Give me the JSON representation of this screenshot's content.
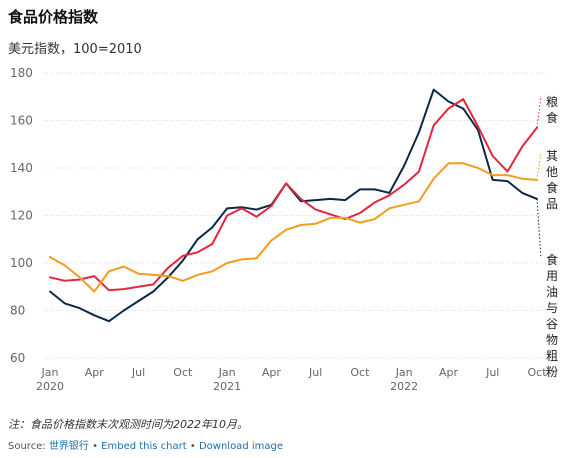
{
  "title": "食品价格指数",
  "subtitle": "美元指数，100=2010",
  "note": "注：食品价格指数末次观测时间为2022年10月。",
  "source": {
    "prefix": "Source: ",
    "link_source": "世界银行",
    "separator": " • ",
    "link_embed": "Embed this chart",
    "link_download": "Download image"
  },
  "colors": {
    "grains": "#e0283e",
    "other_food": "#f39c1f",
    "oils": "#0c2749",
    "grid": "#d9d9d9",
    "axis_text": "#666666"
  },
  "chart_data": {
    "type": "line",
    "x": [
      "2020-01",
      "2020-02",
      "2020-03",
      "2020-04",
      "2020-05",
      "2020-06",
      "2020-07",
      "2020-08",
      "2020-09",
      "2020-10",
      "2020-11",
      "2020-12",
      "2021-01",
      "2021-02",
      "2021-03",
      "2021-04",
      "2021-05",
      "2021-06",
      "2021-07",
      "2021-08",
      "2021-09",
      "2021-10",
      "2021-11",
      "2021-12",
      "2022-01",
      "2022-02",
      "2022-03",
      "2022-04",
      "2022-05",
      "2022-06",
      "2022-07",
      "2022-08",
      "2022-09",
      "2022-10"
    ],
    "ylim": [
      60,
      180
    ],
    "yticks": [
      60,
      80,
      100,
      120,
      140,
      160,
      180
    ],
    "xticks": [
      {
        "index": 0,
        "label": "Jan",
        "year": "2020"
      },
      {
        "index": 3,
        "label": "Apr",
        "year": ""
      },
      {
        "index": 6,
        "label": "Jul",
        "year": ""
      },
      {
        "index": 9,
        "label": "Oct",
        "year": ""
      },
      {
        "index": 12,
        "label": "Jan",
        "year": "2021"
      },
      {
        "index": 15,
        "label": "Apr",
        "year": ""
      },
      {
        "index": 18,
        "label": "Jul",
        "year": ""
      },
      {
        "index": 21,
        "label": "Oct",
        "year": ""
      },
      {
        "index": 24,
        "label": "Jan",
        "year": "2022"
      },
      {
        "index": 27,
        "label": "Apr",
        "year": ""
      },
      {
        "index": 30,
        "label": "Jul",
        "year": ""
      },
      {
        "index": 33,
        "label": "Oct",
        "year": ""
      }
    ],
    "grid": "horizontal",
    "series": [
      {
        "key": "oils",
        "name": "食用油与谷物粗粉",
        "values": [
          88,
          83,
          81,
          78,
          75.5,
          80,
          84,
          88,
          94,
          101,
          110,
          115,
          123,
          123.5,
          122.5,
          124.5,
          133.5,
          126,
          126.5,
          127,
          126.5,
          131,
          131,
          129.5,
          141,
          155,
          173,
          168,
          165,
          156,
          135,
          134.5,
          129.5,
          127
        ]
      },
      {
        "key": "grains",
        "name": "粮食",
        "values": [
          94,
          92.5,
          93,
          94.5,
          88.5,
          89,
          90,
          91,
          98,
          103,
          104.5,
          108,
          120,
          123,
          119.5,
          124,
          133.5,
          127,
          122.5,
          120.5,
          118.5,
          121,
          125.5,
          128.5,
          133,
          138.5,
          158,
          165,
          169,
          157.5,
          145,
          138.5,
          149,
          157
        ]
      },
      {
        "key": "other_food",
        "name": "其他食品",
        "values": [
          102.5,
          99,
          94,
          88,
          96.5,
          98.5,
          95.5,
          95,
          94.5,
          92.5,
          95,
          96.5,
          100,
          101.5,
          102,
          109.5,
          114,
          116,
          116.5,
          119,
          119,
          117,
          118.5,
          123,
          124.5,
          126,
          135.5,
          142,
          142,
          140,
          137,
          137,
          135.5,
          135
        ]
      }
    ]
  },
  "labels": {
    "grains": "粮食",
    "other_food": "其他食品",
    "oils": "食用油与谷物粗粉"
  }
}
